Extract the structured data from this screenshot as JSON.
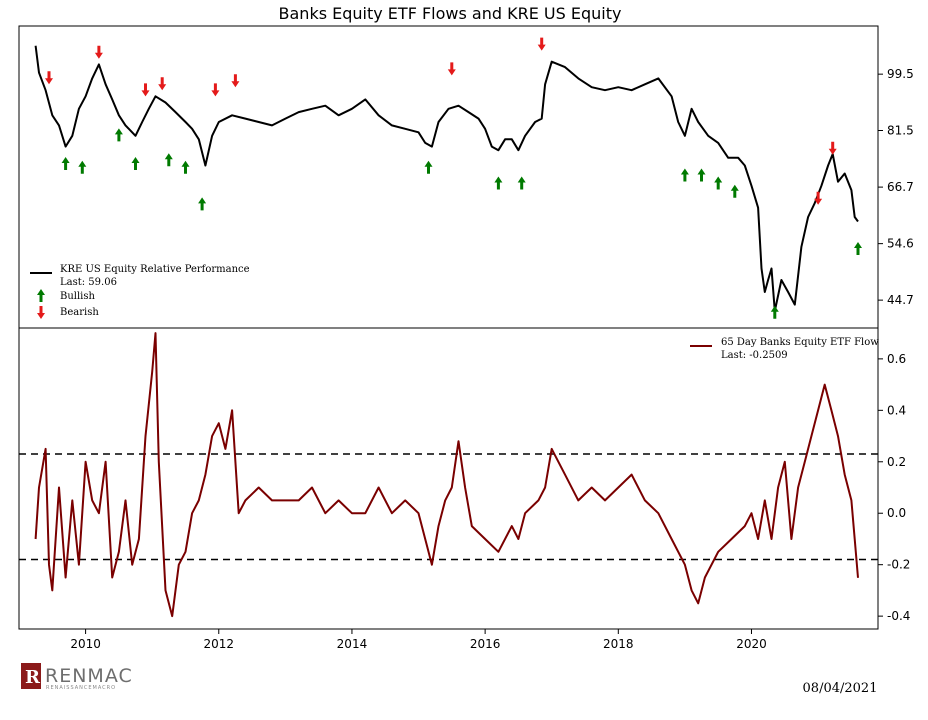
{
  "footer": {
    "date": "08/04/2021",
    "logo_text": "RENMAC",
    "logo_sub": "RENAISSANCEMACRO"
  },
  "colors": {
    "line_top": "#000000",
    "line_bottom": "#7a0000",
    "bullish": "#007a00",
    "bearish": "#e41a1a"
  },
  "chart_data": [
    {
      "type": "line",
      "title": "Banks Equity ETF Flows and KRE US Equity",
      "yscale": "log",
      "ylim": [
        40.5,
        118
      ],
      "y_ticks": [
        "44.7",
        "54.6",
        "66.7",
        "81.5",
        "99.5"
      ],
      "y_tick_values": [
        44.7,
        54.6,
        66.7,
        81.5,
        99.5
      ],
      "x_ticks": [
        "2010",
        "2012",
        "2014",
        "2016",
        "2018",
        "2020"
      ],
      "x_tick_values": [
        2010,
        2012,
        2014,
        2016,
        2018,
        2020
      ],
      "xlim": [
        2009.0,
        2021.9
      ],
      "legend_position": "lower-left",
      "series": [
        {
          "name": "KRE US Equity Relative Performance",
          "last_label": "Last: 59.06",
          "x": [
            2009.25,
            2009.3,
            2009.4,
            2009.5,
            2009.6,
            2009.7,
            2009.8,
            2009.9,
            2010.0,
            2010.1,
            2010.2,
            2010.3,
            2010.4,
            2010.5,
            2010.6,
            2010.75,
            2010.85,
            2010.95,
            2011.05,
            2011.2,
            2011.35,
            2011.5,
            2011.6,
            2011.7,
            2011.8,
            2011.9,
            2012.0,
            2012.2,
            2012.4,
            2012.6,
            2012.8,
            2013.0,
            2013.2,
            2013.4,
            2013.6,
            2013.8,
            2014.0,
            2014.2,
            2014.4,
            2014.6,
            2014.8,
            2015.0,
            2015.1,
            2015.2,
            2015.3,
            2015.45,
            2015.6,
            2015.75,
            2015.9,
            2016.0,
            2016.1,
            2016.2,
            2016.3,
            2016.4,
            2016.5,
            2016.6,
            2016.75,
            2016.85,
            2016.9,
            2017.0,
            2017.2,
            2017.4,
            2017.6,
            2017.8,
            2018.0,
            2018.2,
            2018.4,
            2018.6,
            2018.8,
            2018.9,
            2019.0,
            2019.1,
            2019.2,
            2019.35,
            2019.5,
            2019.65,
            2019.8,
            2019.9,
            2020.0,
            2020.1,
            2020.15,
            2020.2,
            2020.25,
            2020.3,
            2020.35,
            2020.45,
            2020.55,
            2020.65,
            2020.75,
            2020.85,
            2020.95,
            2021.05,
            2021.15,
            2021.22,
            2021.3,
            2021.4,
            2021.5,
            2021.55,
            2021.6
          ],
          "y": [
            110,
            100,
            94,
            86,
            83,
            77,
            80,
            88,
            92,
            98,
            103,
            96,
            91,
            86,
            83,
            80,
            84,
            88,
            92,
            90,
            87,
            84,
            82,
            79,
            72,
            80,
            84,
            86,
            85,
            84,
            83,
            85,
            87,
            88,
            89,
            86,
            88,
            91,
            86,
            83,
            82,
            81,
            78,
            77,
            84,
            88,
            89,
            87,
            85,
            82,
            77,
            76,
            79,
            79,
            76,
            80,
            84,
            85,
            96,
            104,
            102,
            98,
            95,
            94,
            95,
            94,
            96,
            98,
            92,
            84,
            80,
            88,
            84,
            80,
            78,
            74,
            74,
            72,
            67,
            62,
            50,
            46,
            48,
            50,
            43,
            48,
            46,
            44,
            54,
            60,
            63,
            67,
            72,
            75,
            68,
            70,
            66,
            60,
            59.06
          ]
        }
      ]
    },
    {
      "type": "line",
      "ylim": [
        -0.45,
        0.72
      ],
      "y_ticks": [
        "-0.4",
        "-0.2",
        "0.0",
        "0.2",
        "0.4",
        "0.6"
      ],
      "y_tick_values": [
        -0.4,
        -0.2,
        0.0,
        0.2,
        0.4,
        0.6
      ],
      "x_ticks": [
        "2010",
        "2012",
        "2014",
        "2016",
        "2018",
        "2020"
      ],
      "x_tick_values": [
        2010,
        2012,
        2014,
        2016,
        2018,
        2020
      ],
      "xlim": [
        2009.0,
        2021.9
      ],
      "reference_lines": [
        0.23,
        -0.18
      ],
      "legend_position": "top-right",
      "series": [
        {
          "name": "65 Day Banks Equity ETF Flow",
          "last_label": "Last: -0.2509",
          "x": [
            2009.25,
            2009.3,
            2009.4,
            2009.45,
            2009.5,
            2009.6,
            2009.7,
            2009.8,
            2009.9,
            2010.0,
            2010.1,
            2010.2,
            2010.3,
            2010.4,
            2010.5,
            2010.6,
            2010.7,
            2010.8,
            2010.9,
            2011.0,
            2011.05,
            2011.1,
            2011.2,
            2011.3,
            2011.4,
            2011.5,
            2011.6,
            2011.7,
            2011.8,
            2011.9,
            2012.0,
            2012.1,
            2012.2,
            2012.3,
            2012.4,
            2012.6,
            2012.8,
            2013.0,
            2013.2,
            2013.4,
            2013.6,
            2013.8,
            2014.0,
            2014.2,
            2014.4,
            2014.6,
            2014.8,
            2015.0,
            2015.1,
            2015.2,
            2015.3,
            2015.4,
            2015.5,
            2015.6,
            2015.7,
            2015.8,
            2016.0,
            2016.2,
            2016.4,
            2016.5,
            2016.6,
            2016.8,
            2016.9,
            2017.0,
            2017.2,
            2017.4,
            2017.6,
            2017.8,
            2018.0,
            2018.2,
            2018.4,
            2018.6,
            2018.8,
            2019.0,
            2019.1,
            2019.2,
            2019.3,
            2019.5,
            2019.7,
            2019.9,
            2020.0,
            2020.1,
            2020.2,
            2020.3,
            2020.4,
            2020.5,
            2020.6,
            2020.7,
            2020.8,
            2020.9,
            2021.0,
            2021.1,
            2021.2,
            2021.3,
            2021.4,
            2021.5,
            2021.55,
            2021.6
          ],
          "y": [
            -0.1,
            0.1,
            0.25,
            -0.2,
            -0.3,
            0.1,
            -0.25,
            0.05,
            -0.2,
            0.2,
            0.05,
            0.0,
            0.2,
            -0.25,
            -0.15,
            0.05,
            -0.2,
            -0.1,
            0.3,
            0.55,
            0.7,
            0.2,
            -0.3,
            -0.4,
            -0.2,
            -0.15,
            0.0,
            0.05,
            0.15,
            0.3,
            0.35,
            0.25,
            0.4,
            0.0,
            0.05,
            0.1,
            0.05,
            0.05,
            0.05,
            0.1,
            0.0,
            0.05,
            0.0,
            0.0,
            0.1,
            0.0,
            0.05,
            0.0,
            -0.1,
            -0.2,
            -0.05,
            0.05,
            0.1,
            0.28,
            0.1,
            -0.05,
            -0.1,
            -0.15,
            -0.05,
            -0.1,
            0.0,
            0.05,
            0.1,
            0.25,
            0.15,
            0.05,
            0.1,
            0.05,
            0.1,
            0.15,
            0.05,
            0.0,
            -0.1,
            -0.2,
            -0.3,
            -0.35,
            -0.25,
            -0.15,
            -0.1,
            -0.05,
            0.0,
            -0.1,
            0.05,
            -0.1,
            0.1,
            0.2,
            -0.1,
            0.1,
            0.2,
            0.3,
            0.4,
            0.5,
            0.4,
            0.3,
            0.15,
            0.05,
            -0.1,
            -0.2509
          ]
        }
      ]
    }
  ],
  "markers": {
    "bullish": [
      {
        "x": 2009.7,
        "y": 75
      },
      {
        "x": 2009.95,
        "y": 74
      },
      {
        "x": 2010.5,
        "y": 83
      },
      {
        "x": 2010.75,
        "y": 75
      },
      {
        "x": 2011.25,
        "y": 76
      },
      {
        "x": 2011.5,
        "y": 74
      },
      {
        "x": 2011.75,
        "y": 65
      },
      {
        "x": 2015.15,
        "y": 74
      },
      {
        "x": 2016.2,
        "y": 70
      },
      {
        "x": 2016.55,
        "y": 70
      },
      {
        "x": 2019.0,
        "y": 72
      },
      {
        "x": 2019.25,
        "y": 72
      },
      {
        "x": 2019.5,
        "y": 70
      },
      {
        "x": 2019.75,
        "y": 68
      },
      {
        "x": 2020.35,
        "y": 44.3
      },
      {
        "x": 2021.6,
        "y": 55.5
      }
    ],
    "bearish": [
      {
        "x": 2009.45,
        "y": 95
      },
      {
        "x": 2010.2,
        "y": 104
      },
      {
        "x": 2010.9,
        "y": 91
      },
      {
        "x": 2011.15,
        "y": 93
      },
      {
        "x": 2011.95,
        "y": 91
      },
      {
        "x": 2012.25,
        "y": 94
      },
      {
        "x": 2015.5,
        "y": 98
      },
      {
        "x": 2016.85,
        "y": 107
      },
      {
        "x": 2021.0,
        "y": 62
      },
      {
        "x": 2021.22,
        "y": 74
      }
    ]
  },
  "legend_top": {
    "line_label": "KRE US Equity Relative Performance",
    "last": "Last: 59.06",
    "bullish": "Bullish",
    "bearish": "Bearish"
  },
  "legend_bottom": {
    "line_label": "65 Day Banks Equity ETF Flow",
    "last": "Last: -0.2509"
  }
}
